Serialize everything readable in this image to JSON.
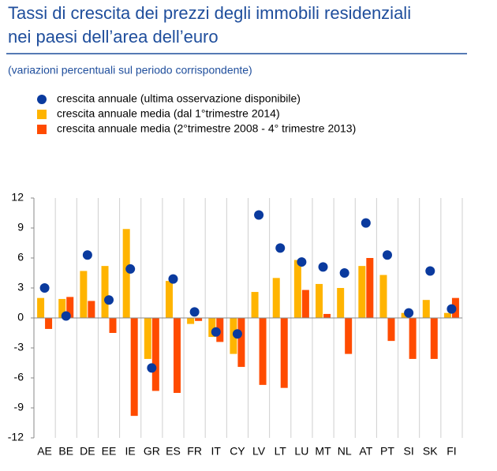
{
  "chart_data": {
    "type": "bar",
    "title": [
      "Tassi di crescita dei prezzi degli immobili residenziali",
      "nei paesi dell’area dell’euro"
    ],
    "subtitle": "(variazioni percentuali sul periodo corrispondente)",
    "categories": [
      "AE",
      "BE",
      "DE",
      "EE",
      "IE",
      "GR",
      "ES",
      "FR",
      "IT",
      "CY",
      "LV",
      "LT",
      "LU",
      "MT",
      "NL",
      "AT",
      "PT",
      "SI",
      "SK",
      "FI"
    ],
    "series": [
      {
        "name": "crescita annuale (ultima osservazione disponibile)",
        "color": "#0a3a9e",
        "marker": "dot",
        "values": [
          3.0,
          0.2,
          6.3,
          1.8,
          4.9,
          -5.0,
          3.9,
          0.6,
          -1.4,
          -1.6,
          10.3,
          7.0,
          5.6,
          5.1,
          4.5,
          9.5,
          6.3,
          0.5,
          4.7,
          0.9
        ]
      },
      {
        "name": "crescita annuale media (dal 1°trimestre 2014)",
        "color": "#ffb400",
        "marker": "bar",
        "values": [
          2.0,
          1.9,
          4.7,
          5.2,
          8.9,
          -4.1,
          3.7,
          -0.6,
          -1.9,
          -3.6,
          2.6,
          4.0,
          5.8,
          3.4,
          3.0,
          5.2,
          4.3,
          0.5,
          1.8,
          0.5
        ]
      },
      {
        "name": "crescita annuale media (2°trimestre 2008 - 4° trimestre 2013)",
        "color": "#ff4b00",
        "marker": "bar",
        "values": [
          -1.1,
          2.1,
          1.7,
          -1.5,
          -9.8,
          -7.3,
          -7.5,
          -0.3,
          -2.4,
          -4.9,
          -6.7,
          -7.0,
          2.8,
          0.4,
          -3.6,
          6.0,
          -2.3,
          -4.1,
          -4.1,
          2.0
        ]
      }
    ],
    "ylim": [
      -12,
      12
    ],
    "yticks": [
      -12,
      -9,
      -6,
      -3,
      0,
      3,
      6,
      9,
      12
    ],
    "grid": true
  }
}
